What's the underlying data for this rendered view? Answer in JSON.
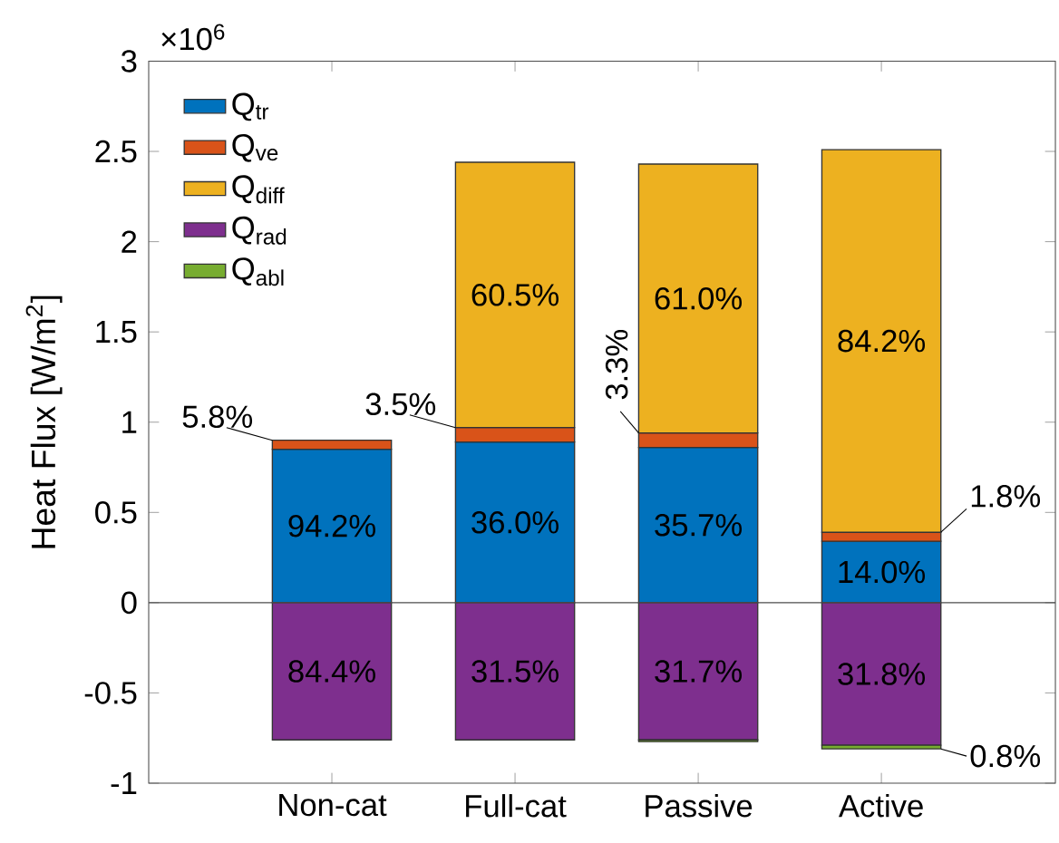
{
  "chart_data": {
    "type": "bar",
    "stacked": true,
    "ylabel": "Heat Flux [W/m$^{2}$]",
    "annotations": [
      "94.2%",
      "36.0%",
      "35.7%",
      "14.0%",
      "5.8%",
      "3.5%",
      "3.3%",
      "1.8%",
      "60.5%",
      "61.0%",
      "84.2%",
      "84.4%",
      "31.5%",
      "31.7%",
      "31.8%",
      "0.8%",
      "×10$^{6}$"
    ],
    "categories": [
      "Non-cat",
      "Full-cat",
      "Passive",
      "Active"
    ],
    "series": [
      {
        "name": "Q$_{tr}$",
        "color": "#0072bd",
        "values": [
          0.85,
          0.89,
          0.86,
          0.34
        ]
      },
      {
        "name": "Q$_{ve}$",
        "color": "#d95319",
        "values": [
          0.05,
          0.08,
          0.08,
          0.05
        ]
      },
      {
        "name": "Q$_{diff}$",
        "color": "#edb120",
        "values": [
          null,
          1.47,
          1.49,
          2.12
        ]
      },
      {
        "name": "Q$_{rad}$",
        "color": "#7e2f8e",
        "values": [
          -0.76,
          -0.76,
          -0.76,
          -0.79
        ]
      },
      {
        "name": "Q$_{abl}$",
        "color": "#77ac30",
        "values": [
          null,
          null,
          -0.01,
          -0.02
        ]
      }
    ],
    "ylim": [
      -1,
      3
    ],
    "yticks": [
      -1,
      -0.5,
      0,
      0.5,
      1,
      1.5,
      2,
      2.5,
      3
    ],
    "ref_lines": [
      {
        "axis": "y",
        "value": 0
      }
    ],
    "legend": "top left",
    "grid": false
  }
}
